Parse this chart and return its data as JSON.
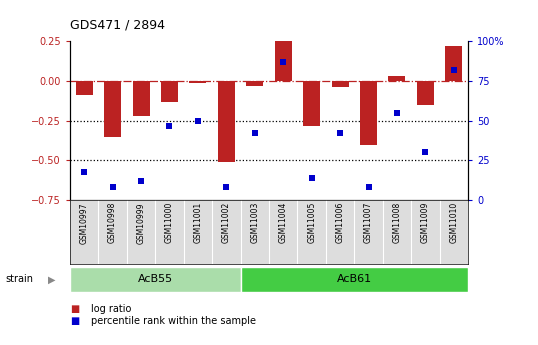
{
  "title": "GDS471 / 2894",
  "samples": [
    "GSM10997",
    "GSM10998",
    "GSM10999",
    "GSM11000",
    "GSM11001",
    "GSM11002",
    "GSM11003",
    "GSM11004",
    "GSM11005",
    "GSM11006",
    "GSM11007",
    "GSM11008",
    "GSM11009",
    "GSM11010"
  ],
  "log_ratio": [
    -0.09,
    -0.35,
    -0.22,
    -0.13,
    -0.01,
    -0.51,
    -0.03,
    0.27,
    -0.28,
    -0.04,
    -0.4,
    0.03,
    -0.15,
    0.22
  ],
  "percentile": [
    18,
    8,
    12,
    47,
    50,
    8,
    42,
    87,
    14,
    42,
    8,
    55,
    30,
    82
  ],
  "groups": [
    {
      "label": "AcB55",
      "start": 0,
      "end": 6,
      "color": "#aaddaa"
    },
    {
      "label": "AcB61",
      "start": 6,
      "end": 14,
      "color": "#44cc44"
    }
  ],
  "bar_color": "#BB2222",
  "dot_color": "#0000CC",
  "ylim_left": [
    -0.75,
    0.25
  ],
  "ylim_right": [
    0,
    100
  ],
  "left_ticks": [
    0.25,
    0.0,
    -0.25,
    -0.5,
    -0.75
  ],
  "right_ticks": [
    100,
    75,
    50,
    25,
    0
  ],
  "legend_bar_label": "log ratio",
  "legend_dot_label": "percentile rank within the sample",
  "strain_label": "strain"
}
